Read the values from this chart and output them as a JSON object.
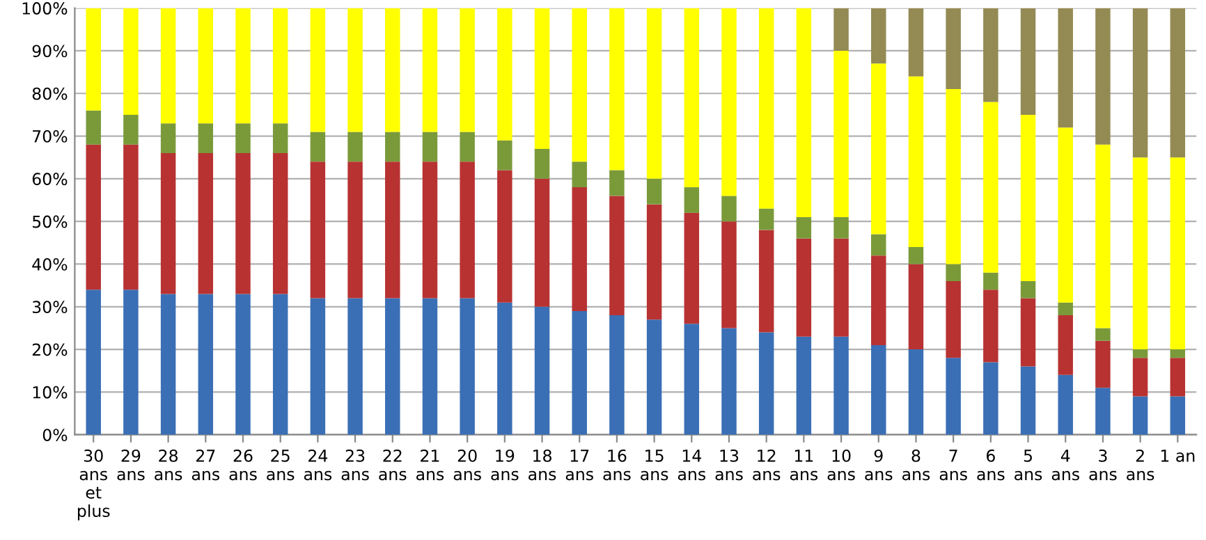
{
  "chart_data": {
    "type": "bar",
    "stacked": true,
    "grid": "y",
    "categories": [
      "30\nans\net\nplus",
      "29\nans",
      "28\nans",
      "27\nans",
      "26\nans",
      "25\nans",
      "24\nans",
      "23\nans",
      "22\nans",
      "21\nans",
      "20\nans",
      "19\nans",
      "18\nans",
      "17\nans",
      "16\nans",
      "15\nans",
      "14\nans",
      "13\nans",
      "12\nans",
      "11\nans",
      "10\nans",
      "9\nans",
      "8\nans",
      "7\nans",
      "6\nans",
      "5\nans",
      "4\nans",
      "3\nans",
      "2\nans",
      "1 an"
    ],
    "ylim": [
      0,
      100
    ],
    "yticks": [
      {
        "value": 0,
        "label": "0%"
      },
      {
        "value": 10,
        "label": "10%"
      },
      {
        "value": 20,
        "label": "20%"
      },
      {
        "value": 30,
        "label": "30%"
      },
      {
        "value": 40,
        "label": "40%"
      },
      {
        "value": 50,
        "label": "50%"
      },
      {
        "value": 60,
        "label": "60%"
      },
      {
        "value": 70,
        "label": "70%"
      },
      {
        "value": 80,
        "label": "80%"
      },
      {
        "value": 90,
        "label": "90%"
      },
      {
        "value": 100,
        "label": "100%"
      }
    ],
    "series": [
      {
        "color": "#3a6fb5",
        "values": [
          34,
          34,
          33,
          33,
          33,
          33,
          32,
          32,
          32,
          32,
          32,
          31,
          30,
          29,
          28,
          27,
          26,
          25,
          24,
          23,
          23,
          21,
          20,
          18,
          17,
          16,
          14,
          11,
          9,
          9
        ]
      },
      {
        "color": "#b83232",
        "values": [
          34,
          34,
          33,
          33,
          33,
          33,
          32,
          32,
          32,
          32,
          32,
          31,
          30,
          29,
          28,
          27,
          26,
          25,
          24,
          23,
          23,
          21,
          20,
          18,
          17,
          16,
          14,
          11,
          9,
          9
        ]
      },
      {
        "color": "#7a9a3a",
        "values": [
          8,
          7,
          7,
          7,
          7,
          7,
          7,
          7,
          7,
          7,
          7,
          7,
          7,
          6,
          6,
          6,
          6,
          6,
          5,
          5,
          5,
          5,
          4,
          4,
          4,
          4,
          3,
          3,
          2,
          2
        ]
      },
      {
        "color": "#ffff00",
        "values": [
          24,
          25,
          27,
          27,
          27,
          27,
          29,
          29,
          29,
          29,
          29,
          31,
          33,
          36,
          38,
          40,
          42,
          44,
          47,
          49,
          39,
          40,
          40,
          41,
          40,
          39,
          41,
          43,
          45,
          45
        ]
      },
      {
        "color": "#948a54",
        "values": [
          0,
          0,
          0,
          0,
          0,
          0,
          0,
          0,
          0,
          0,
          0,
          0,
          0,
          0,
          0,
          0,
          0,
          0,
          0,
          0,
          10,
          13,
          16,
          19,
          22,
          25,
          28,
          32,
          35,
          35
        ]
      }
    ]
  }
}
